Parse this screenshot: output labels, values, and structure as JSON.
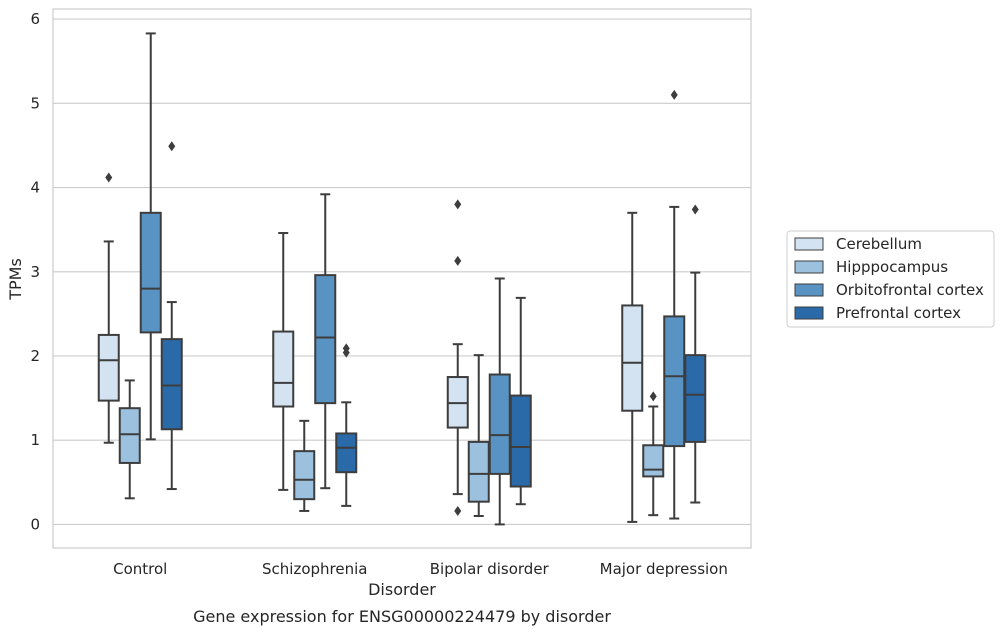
{
  "chart_data": {
    "type": "box",
    "title": "Gene expression for ENSG00000224479 by disorder",
    "xlabel": "Disorder",
    "ylabel": "TPMs",
    "ylim": [
      -0.28,
      6.12
    ],
    "yticks": [
      "0",
      "1",
      "2",
      "3",
      "4",
      "5",
      "6"
    ],
    "grid": "horizontal",
    "legend_position": "right",
    "categories": [
      "Control",
      "Schizophrenia",
      "Bipolar disorder",
      "Major depression"
    ],
    "series": [
      {
        "name": "Cerebellum",
        "color": "#d4e3f2",
        "boxes": [
          {
            "whislo": 0.97,
            "q1": 1.47,
            "med": 1.95,
            "q3": 2.25,
            "whishi": 3.36,
            "fliers": [
              4.12
            ]
          },
          {
            "whislo": 0.41,
            "q1": 1.4,
            "med": 1.68,
            "q3": 2.29,
            "whishi": 3.46,
            "fliers": []
          },
          {
            "whislo": 0.36,
            "q1": 1.15,
            "med": 1.44,
            "q3": 1.75,
            "whishi": 2.14,
            "fliers": [
              0.16,
              3.13,
              3.8
            ]
          },
          {
            "whislo": 0.03,
            "q1": 1.35,
            "med": 1.92,
            "q3": 2.6,
            "whishi": 3.7,
            "fliers": []
          }
        ]
      },
      {
        "name": "Hipppocampus",
        "color": "#9cc1df",
        "boxes": [
          {
            "whislo": 0.31,
            "q1": 0.73,
            "med": 1.07,
            "q3": 1.38,
            "whishi": 1.71,
            "fliers": []
          },
          {
            "whislo": 0.16,
            "q1": 0.3,
            "med": 0.53,
            "q3": 0.87,
            "whishi": 1.23,
            "fliers": []
          },
          {
            "whislo": 0.1,
            "q1": 0.27,
            "med": 0.6,
            "q3": 0.98,
            "whishi": 2.01,
            "fliers": []
          },
          {
            "whislo": 0.11,
            "q1": 0.57,
            "med": 0.65,
            "q3": 0.94,
            "whishi": 1.4,
            "fliers": [
              1.52
            ]
          }
        ]
      },
      {
        "name": "Orbitofrontal cortex",
        "color": "#5993c4",
        "boxes": [
          {
            "whislo": 1.01,
            "q1": 2.28,
            "med": 2.8,
            "q3": 3.7,
            "whishi": 5.83,
            "fliers": []
          },
          {
            "whislo": 0.43,
            "q1": 1.44,
            "med": 2.22,
            "q3": 2.96,
            "whishi": 3.92,
            "fliers": []
          },
          {
            "whislo": 0.0,
            "q1": 0.6,
            "med": 1.06,
            "q3": 1.78,
            "whishi": 2.92,
            "fliers": []
          },
          {
            "whislo": 0.07,
            "q1": 0.93,
            "med": 1.76,
            "q3": 2.47,
            "whishi": 3.77,
            "fliers": [
              5.1
            ]
          }
        ]
      },
      {
        "name": "Prefrontal cortex",
        "color": "#2b6aa9",
        "boxes": [
          {
            "whislo": 0.42,
            "q1": 1.13,
            "med": 1.65,
            "q3": 2.2,
            "whishi": 2.64,
            "fliers": [
              4.49
            ]
          },
          {
            "whislo": 0.22,
            "q1": 0.62,
            "med": 0.91,
            "q3": 1.08,
            "whishi": 1.45,
            "fliers": [
              2.04,
              2.09
            ]
          },
          {
            "whislo": 0.24,
            "q1": 0.45,
            "med": 0.92,
            "q3": 1.53,
            "whishi": 2.69,
            "fliers": []
          },
          {
            "whislo": 0.26,
            "q1": 0.98,
            "med": 1.54,
            "q3": 2.01,
            "whishi": 2.99,
            "fliers": [
              3.74
            ]
          }
        ]
      }
    ]
  }
}
